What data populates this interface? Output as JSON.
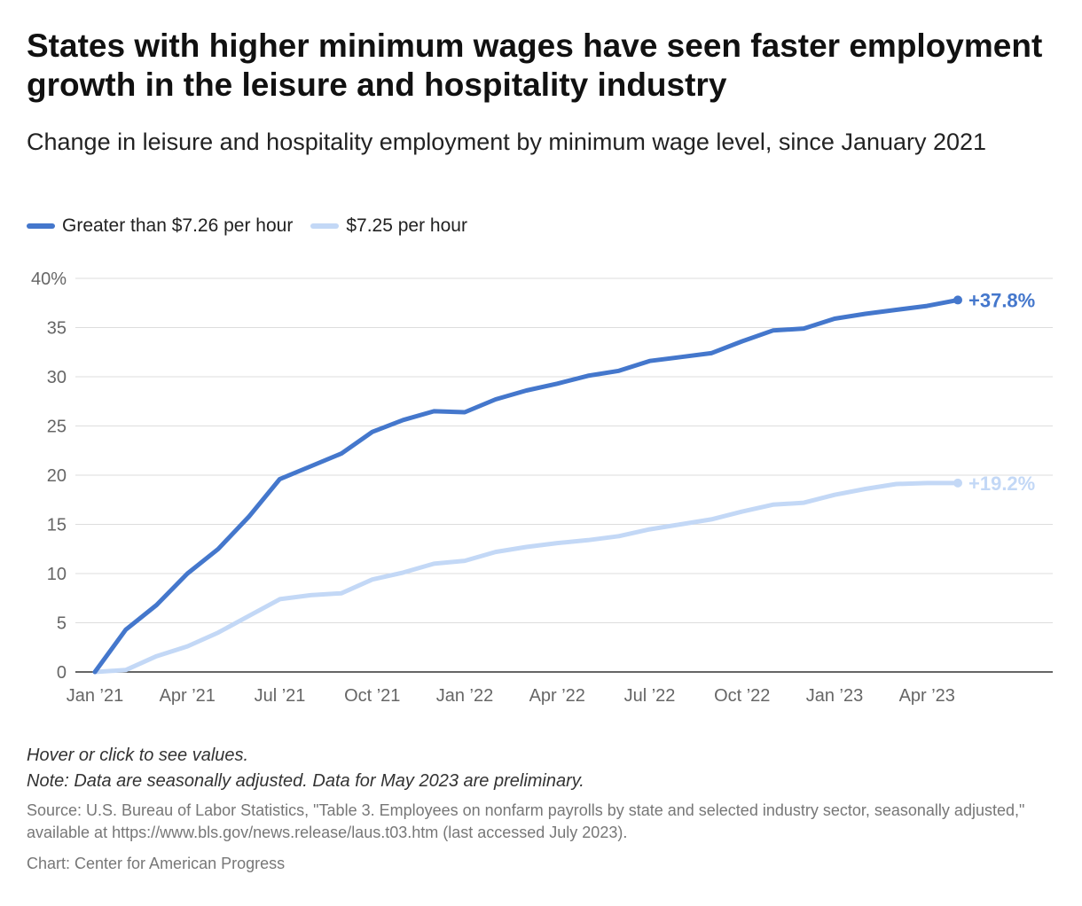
{
  "title": "States with higher minimum wages have seen faster employment growth in the leisure and hospitality industry",
  "subtitle": "Change in leisure and hospitality employment by minimum wage level, since January 2021",
  "notes": {
    "hover": "Hover or click to see values.",
    "note": "Note: Data are seasonally adjusted. Data for May 2023 are preliminary.",
    "source": "Source: U.S. Bureau of Labor Statistics, \"Table 3. Employees on nonfarm payrolls by state and selected industry sector, seasonally adjusted,\" available at https://www.bls.gov/news.release/laus.t03.htm (last accessed July 2023).",
    "credit": "Chart: Center for American Progress"
  },
  "colors": {
    "high_wage": "#4477cc",
    "low_wage": "#c3d8f6",
    "grid": "#dddddd",
    "axis": "#333333"
  },
  "chart_data": {
    "type": "line",
    "x": [
      "2021-01",
      "2021-02",
      "2021-03",
      "2021-04",
      "2021-05",
      "2021-06",
      "2021-07",
      "2021-08",
      "2021-09",
      "2021-10",
      "2021-11",
      "2021-12",
      "2022-01",
      "2022-02",
      "2022-03",
      "2022-04",
      "2022-05",
      "2022-06",
      "2022-07",
      "2022-08",
      "2022-09",
      "2022-10",
      "2022-11",
      "2022-12",
      "2023-01",
      "2023-02",
      "2023-03",
      "2023-04",
      "2023-05"
    ],
    "x_tick_labels": [
      "Jan ’21",
      "Apr ’21",
      "Jul ’21",
      "Oct ’21",
      "Jan ’22",
      "Apr ’22",
      "Jul ’22",
      "Oct ’22",
      "Jan ’23",
      "Apr ’23"
    ],
    "y_tick_labels": [
      "40%",
      "35",
      "30",
      "25",
      "20",
      "15",
      "10",
      "5",
      "0"
    ],
    "y_ticks": [
      40,
      35,
      30,
      25,
      20,
      15,
      10,
      5,
      0
    ],
    "ylim": [
      0,
      40
    ],
    "grid": true,
    "legend_position": "top-left",
    "series": [
      {
        "name": "Greater than $7.26 per hour",
        "color": "#4477cc",
        "end_label": "+37.8%",
        "values": [
          0,
          4.3,
          6.8,
          10.0,
          12.5,
          15.8,
          19.6,
          20.9,
          22.2,
          24.4,
          25.6,
          26.5,
          26.4,
          27.7,
          28.6,
          29.3,
          30.1,
          30.6,
          31.6,
          32.0,
          32.4,
          33.6,
          34.7,
          34.9,
          35.9,
          36.4,
          36.8,
          37.2,
          37.8
        ]
      },
      {
        "name": "$7.25 per hour",
        "color": "#c3d8f6",
        "end_label": "+19.2%",
        "values": [
          0,
          0.2,
          1.6,
          2.6,
          4.0,
          5.7,
          7.4,
          7.8,
          8.0,
          9.4,
          10.1,
          11.0,
          11.3,
          12.2,
          12.7,
          13.1,
          13.4,
          13.8,
          14.5,
          15.0,
          15.5,
          16.3,
          17.0,
          17.2,
          18.0,
          18.6,
          19.1,
          19.2,
          19.2
        ]
      }
    ]
  }
}
